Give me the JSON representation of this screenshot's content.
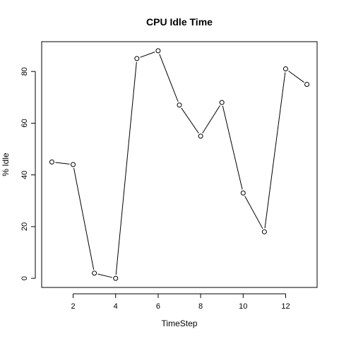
{
  "chart_data": {
    "type": "line",
    "title": "CPU Idle Time",
    "xlabel": "TimeStep",
    "ylabel": "% Idle",
    "x": [
      1,
      2,
      3,
      4,
      5,
      6,
      7,
      8,
      9,
      10,
      11,
      12,
      13
    ],
    "series": [
      {
        "values": [
          45,
          44,
          2,
          0,
          85,
          88,
          67,
          55,
          68,
          33,
          18,
          81,
          75
        ]
      }
    ],
    "xlim": [
      0.52,
      13.48
    ],
    "ylim": [
      -3.52,
      91.52
    ],
    "x_ticks": [
      2,
      4,
      6,
      8,
      10,
      12
    ],
    "y_ticks": [
      0,
      20,
      40,
      60,
      80
    ],
    "x_tick_labels": [
      "2",
      "4",
      "6",
      "8",
      "10",
      "12"
    ],
    "y_tick_labels": [
      "0",
      "20",
      "40",
      "60",
      "80"
    ],
    "marker": "open-circle",
    "line_color": "#000000",
    "grid": false,
    "legend": "none"
  }
}
